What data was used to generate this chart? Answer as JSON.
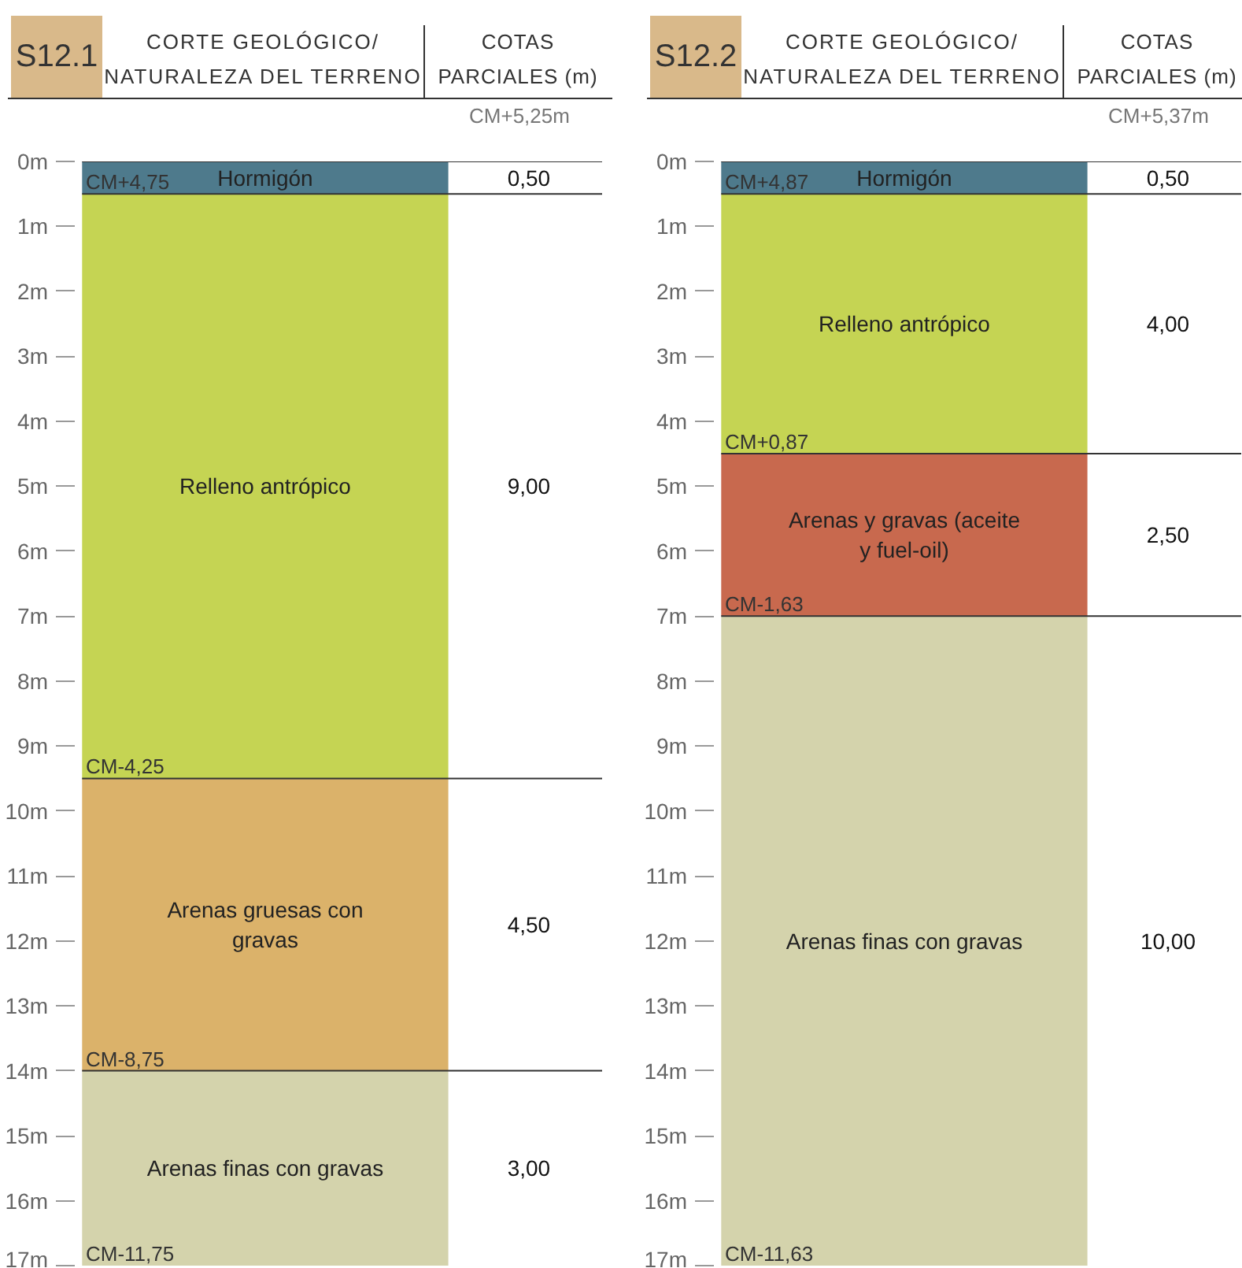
{
  "chart_data": [
    {
      "type": "bar",
      "stacked": true,
      "title": "S12.1",
      "categories": [
        null
      ],
      "tick_labels": "y",
      "ylim": [
        17,
        0
      ],
      "yticks": [
        {
          "value": 0,
          "label": "0m"
        },
        {
          "value": 1,
          "label": "1m"
        },
        {
          "value": 2,
          "label": "2m"
        },
        {
          "value": 3,
          "label": "3m"
        },
        {
          "value": 4,
          "label": "4m"
        },
        {
          "value": 5,
          "label": "5m"
        },
        {
          "value": 6,
          "label": "6m"
        },
        {
          "value": 7,
          "label": "7m"
        },
        {
          "value": 8,
          "label": "8m"
        },
        {
          "value": 9,
          "label": "9m"
        },
        {
          "value": 10,
          "label": "10m"
        },
        {
          "value": 11,
          "label": "11m"
        },
        {
          "value": 12,
          "label": "12m"
        },
        {
          "value": 13,
          "label": "13m"
        },
        {
          "value": 14,
          "label": "14m"
        },
        {
          "value": 15,
          "label": "15m"
        },
        {
          "value": 16,
          "label": "16m"
        },
        {
          "value": 17,
          "label": "17m"
        }
      ],
      "series": [
        {
          "name": "Hormigón",
          "color": "#4e7a8c",
          "values": [
            0.5
          ]
        },
        {
          "name": "Relleno antrópico",
          "color": "#c5d453",
          "values": [
            9.0
          ]
        },
        {
          "name": "Arenas gruesas con gravas",
          "color": "#dbb26a",
          "values": [
            4.5
          ]
        },
        {
          "name": "Arenas finas con gravas",
          "color": "#d4d3ac",
          "values": [
            3.0
          ]
        }
      ],
      "annotations": [
        "CORTE GEOLÓGICO/\nNATURALEZA DEL TERRENO",
        "COTAS PARCIALES (m)",
        "CM+5,25m",
        "0,50",
        "9,00",
        "4,50",
        "3,00",
        {
          "text": "CM+4,75",
          "y": 0.5
        },
        {
          "text": "CM-4,25",
          "y": 9.5
        },
        {
          "text": "CM-8,75",
          "y": 14
        },
        {
          "text": "CM-11,75",
          "y": 17
        }
      ]
    },
    {
      "type": "bar",
      "stacked": true,
      "title": "S12.2",
      "categories": [
        null
      ],
      "tick_labels": "y",
      "ylim": [
        17,
        0
      ],
      "yticks": [
        {
          "value": 0,
          "label": "0m"
        },
        {
          "value": 1,
          "label": "1m"
        },
        {
          "value": 2,
          "label": "2m"
        },
        {
          "value": 3,
          "label": "3m"
        },
        {
          "value": 4,
          "label": "4m"
        },
        {
          "value": 5,
          "label": "5m"
        },
        {
          "value": 6,
          "label": "6m"
        },
        {
          "value": 7,
          "label": "7m"
        },
        {
          "value": 8,
          "label": "8m"
        },
        {
          "value": 9,
          "label": "9m"
        },
        {
          "value": 10,
          "label": "10m"
        },
        {
          "value": 11,
          "label": "11m"
        },
        {
          "value": 12,
          "label": "12m"
        },
        {
          "value": 13,
          "label": "13m"
        },
        {
          "value": 14,
          "label": "14m"
        },
        {
          "value": 15,
          "label": "15m"
        },
        {
          "value": 16,
          "label": "16m"
        },
        {
          "value": 17,
          "label": "17m"
        }
      ],
      "series": [
        {
          "name": "Hormigón",
          "color": "#4e7a8c",
          "values": [
            0.5
          ]
        },
        {
          "name": "Relleno antrópico",
          "color": "#c5d453",
          "values": [
            4.0
          ]
        },
        {
          "name": "Arenas y gravas (aceite y fuel-oil)",
          "color": "#c8694e",
          "values": [
            2.5
          ]
        },
        {
          "name": "Arenas finas con gravas",
          "color": "#d4d3ac",
          "values": [
            10.0
          ]
        }
      ],
      "annotations": [
        "CORTE GEOLÓGICO/\nNATURALEZA DEL TERRENO",
        "COTAS PARCIALES (m)",
        "CM+5,37m",
        "0,50",
        "4,00",
        "2,50",
        "10,00",
        {
          "text": "CM+4,87",
          "y": 0.5
        },
        {
          "text": "CM+0,87",
          "y": 4.5
        },
        {
          "text": "CM-1,63",
          "y": 7
        },
        {
          "text": "CM-11,63",
          "y": 17
        }
      ]
    }
  ]
}
